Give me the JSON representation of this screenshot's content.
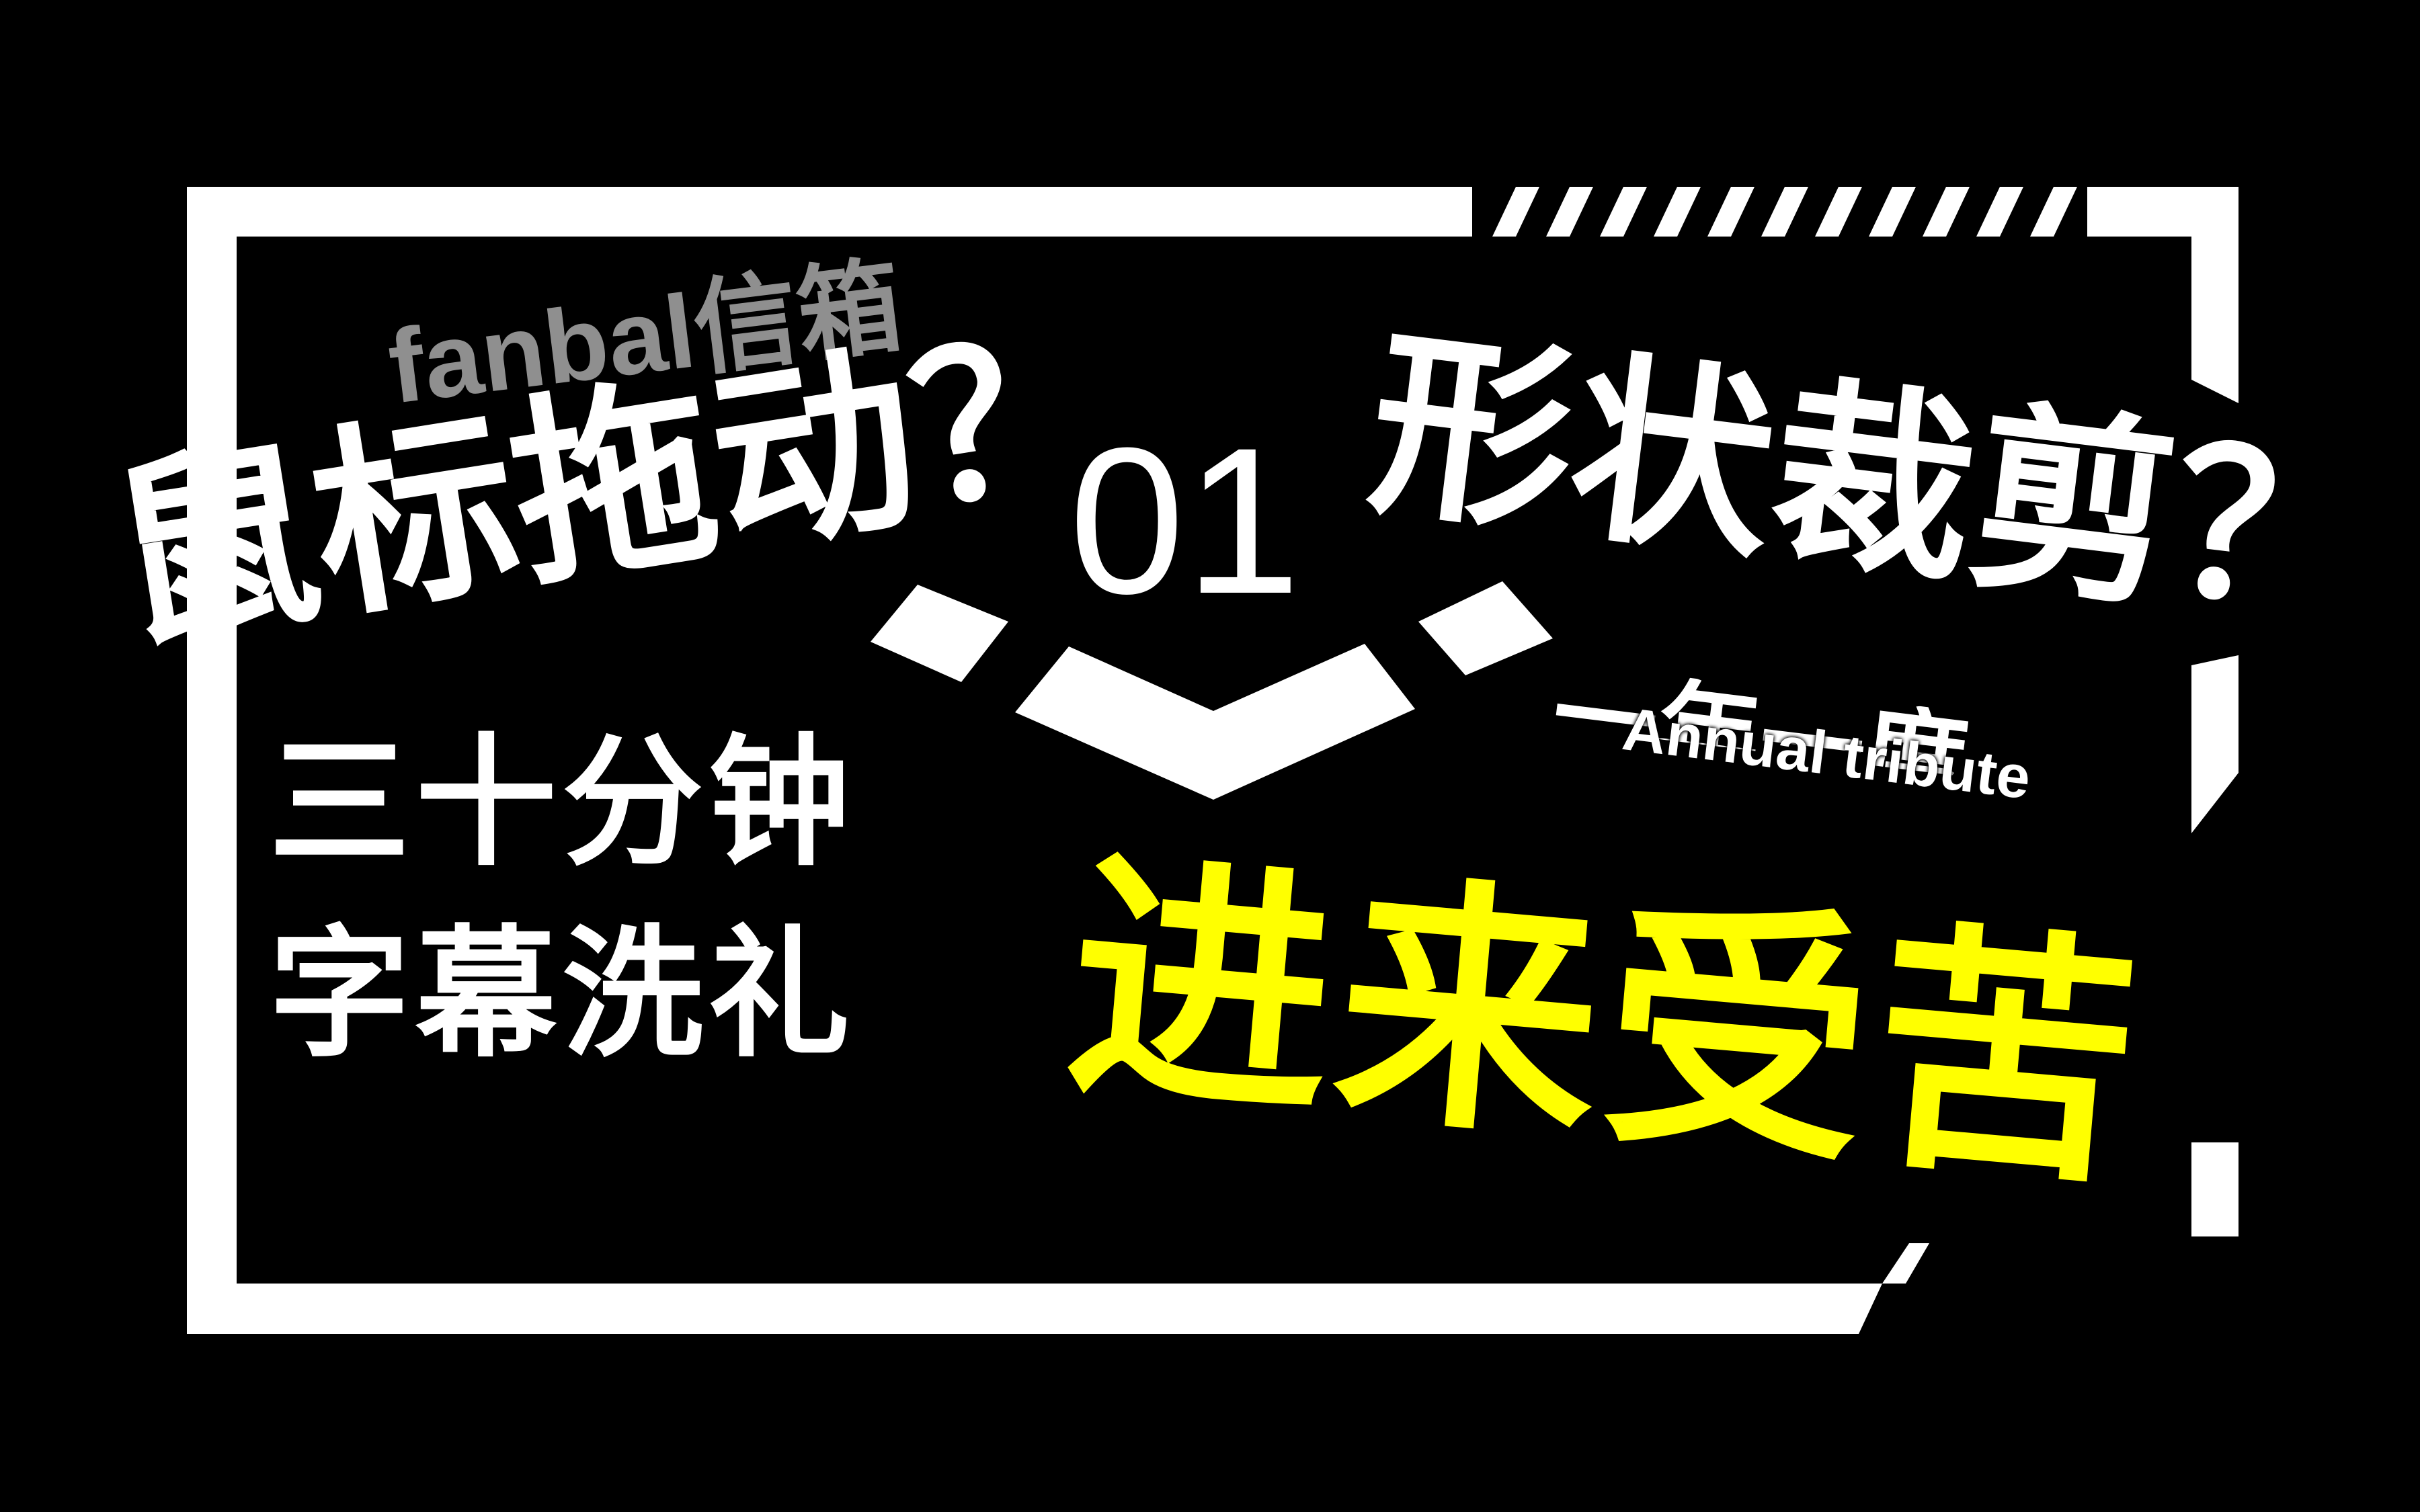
{
  "banner": {
    "mailbox_line": "fanbal信箱",
    "mouse_drag_line": "鼠标拖动？",
    "episode_number": "01",
    "shape_clip_line": "形状裁剪？",
    "thirty_minutes_line": "三十分钟",
    "subtitle_line": "字幕洗礼",
    "annual_tribute_cn": "一年一度",
    "annual_tribute_en": "Annual tribute",
    "cta_line": "进来受苦"
  },
  "colors": {
    "background": "#000000",
    "primary_text": "#ffffff",
    "secondary_text": "#8f8f8f",
    "accent": "#ffff00"
  }
}
